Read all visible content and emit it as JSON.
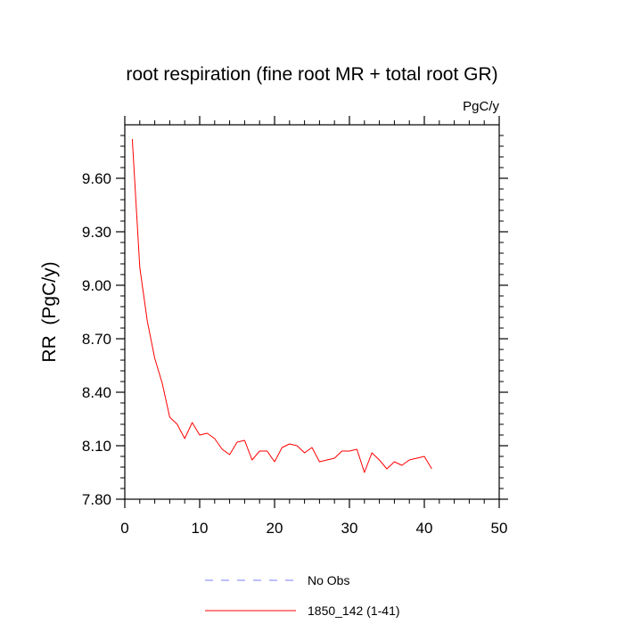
{
  "chart_data": {
    "type": "line",
    "title": "root respiration (fine root MR + total root GR)",
    "units": "PgC/y",
    "ylabel": "RR  (PgC/y)",
    "xlabel": "",
    "xlim": [
      0,
      50
    ],
    "ylim": [
      7.8,
      9.9
    ],
    "xticks": [
      0,
      10,
      20,
      30,
      40,
      50
    ],
    "xtick_labels": [
      "0",
      "10",
      "20",
      "30",
      "40",
      "50"
    ],
    "yticks": [
      7.8,
      8.1,
      8.4,
      8.7,
      9.0,
      9.3,
      9.6
    ],
    "ytick_labels": [
      "7.80",
      "8.10",
      "8.40",
      "8.70",
      "9.00",
      "9.30",
      "9.60"
    ],
    "legend": [
      {
        "name": "No Obs",
        "color": "#7f7fff",
        "dash": true
      },
      {
        "name": "1850_142 (1-41)",
        "color": "#ff0000",
        "dash": false
      }
    ],
    "series": [
      {
        "name": "1850_142 (1-41)",
        "color": "#ff0000",
        "x": [
          1,
          2,
          3,
          4,
          5,
          6,
          7,
          8,
          9,
          10,
          11,
          12,
          13,
          14,
          15,
          16,
          17,
          18,
          19,
          20,
          21,
          22,
          23,
          24,
          25,
          26,
          27,
          28,
          29,
          30,
          31,
          32,
          33,
          34,
          35,
          36,
          37,
          38,
          39,
          40,
          41
        ],
        "values": [
          9.82,
          9.1,
          8.8,
          8.59,
          8.45,
          8.26,
          8.22,
          8.14,
          8.23,
          8.16,
          8.17,
          8.14,
          8.08,
          8.05,
          8.12,
          8.13,
          8.02,
          8.07,
          8.07,
          8.01,
          8.09,
          8.11,
          8.1,
          8.06,
          8.09,
          8.01,
          8.02,
          8.03,
          8.07,
          8.07,
          8.08,
          7.95,
          8.06,
          8.02,
          7.97,
          8.01,
          7.99,
          8.02,
          8.03,
          8.04,
          7.97
        ]
      }
    ]
  }
}
